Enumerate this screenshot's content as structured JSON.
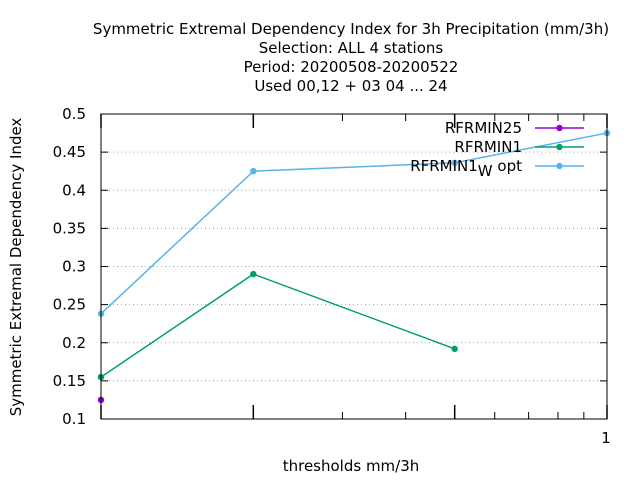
{
  "chart_data": {
    "type": "line",
    "title_lines": [
      "Symmetric Extremal Dependency Index  for 3h Precipitation (mm/3h)",
      "Selection: ALL      4 stations",
      "Period: 20200508-20200522",
      "Used  00,12  + 03 04 ... 24"
    ],
    "xlabel": "thresholds mm/3h",
    "ylabel": "Symmetric Extremal Dependency Index",
    "x_scale": "log",
    "xlim": [
      0.1,
      1
    ],
    "ylim": [
      0.1,
      0.5
    ],
    "x_ticks": [
      0.1,
      0.2,
      0.5,
      1
    ],
    "x_tick_labels": [
      "",
      "",
      "",
      "1"
    ],
    "y_ticks": [
      0.1,
      0.15,
      0.2,
      0.25,
      0.3,
      0.35,
      0.4,
      0.45,
      0.5
    ],
    "y_tick_labels": [
      "0.1",
      "0.15",
      "0.2",
      "0.25",
      "0.3",
      "0.35",
      "0.4",
      "0.45",
      "0.5"
    ],
    "grid": "y-dotted",
    "legend_position": "top-right",
    "series": [
      {
        "name": "RFRMIN25",
        "color": "#9400d3",
        "x": [
          0.1
        ],
        "y": [
          0.125
        ]
      },
      {
        "name": "RFRMIN1",
        "color": "#009e73",
        "x": [
          0.1,
          0.2,
          0.5
        ],
        "y": [
          0.155,
          0.29,
          0.192
        ]
      },
      {
        "name": "RFRMIN1",
        "name_subscript": "W",
        "name_suffix": " opt",
        "color": "#56b4e9",
        "x": [
          0.1,
          0.2,
          0.5,
          1
        ],
        "y": [
          0.238,
          0.425,
          0.436,
          0.475
        ]
      }
    ]
  }
}
